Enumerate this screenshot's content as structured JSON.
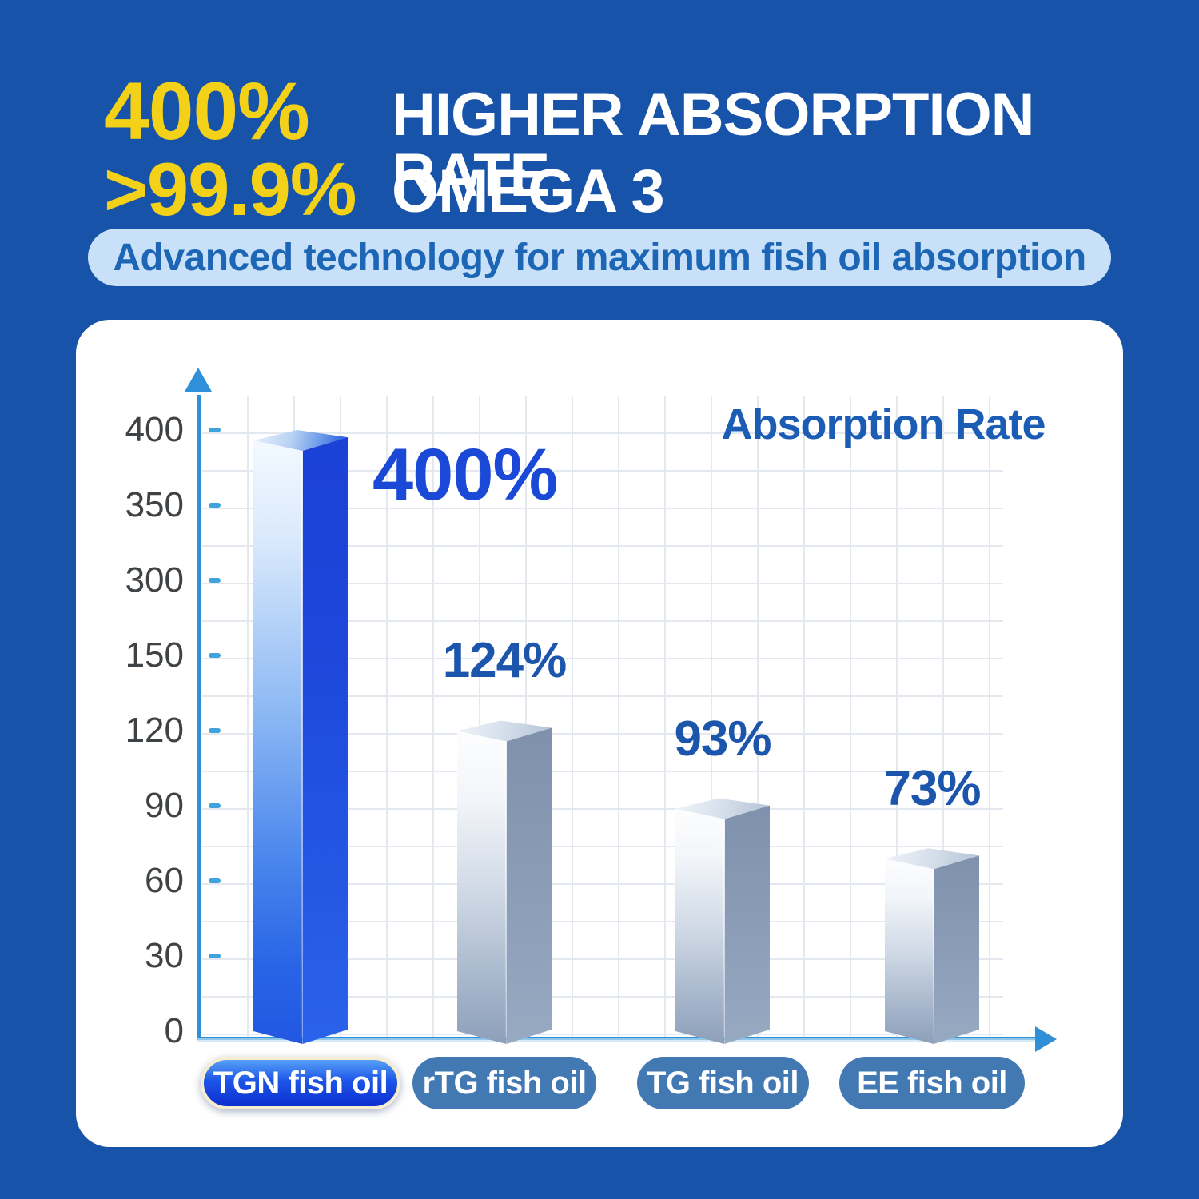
{
  "header": {
    "stat1": "400%",
    "stat1_label": "HIGHER ABSORPTION RATE",
    "stat2": ">99.9%",
    "stat2_label": "OMEGA 3",
    "subtitle": "Advanced technology for maximum fish oil absorption"
  },
  "chart_data": {
    "type": "bar",
    "title": "Absorption Rate",
    "categories": [
      "TGN fish oil",
      "rTG fish oil",
      "TG fish oil",
      "EE fish oil"
    ],
    "values": [
      400,
      124,
      93,
      73
    ],
    "value_labels": [
      "400%",
      "124%",
      "93%",
      "73%"
    ],
    "unit": "%",
    "y_ticks": [
      0,
      30,
      60,
      90,
      120,
      150,
      300,
      350,
      400
    ],
    "y_axis_note": "non-linear scale, equal spacing per tick",
    "xlabel": "",
    "ylabel": "",
    "grid": true,
    "legend_position": "none",
    "highlight_category": "TGN fish oil"
  },
  "colors": {
    "background": "#1753a8",
    "accent_yellow": "#f2d118",
    "headline_white": "#ffffff",
    "subtitle_bg": "#c9e1f8",
    "subtitle_text": "#1d66b6",
    "card_bg": "#ffffff",
    "chart_title_blue": "#1b5cb4",
    "value_label_blue": "#1b55ac",
    "big_value_blue": "#1a49d8",
    "axis_blue": "#2f90d9",
    "tick_dash_blue": "#41a3dd",
    "tick_text_gray": "#3f4345",
    "grid_line": "#e4e8ef",
    "steel_bar": "#8d9fba",
    "highlight_bar": "#2257e2",
    "category_pill_bg": "#4279b3",
    "highlight_pill_border": "#f6ecd2"
  }
}
